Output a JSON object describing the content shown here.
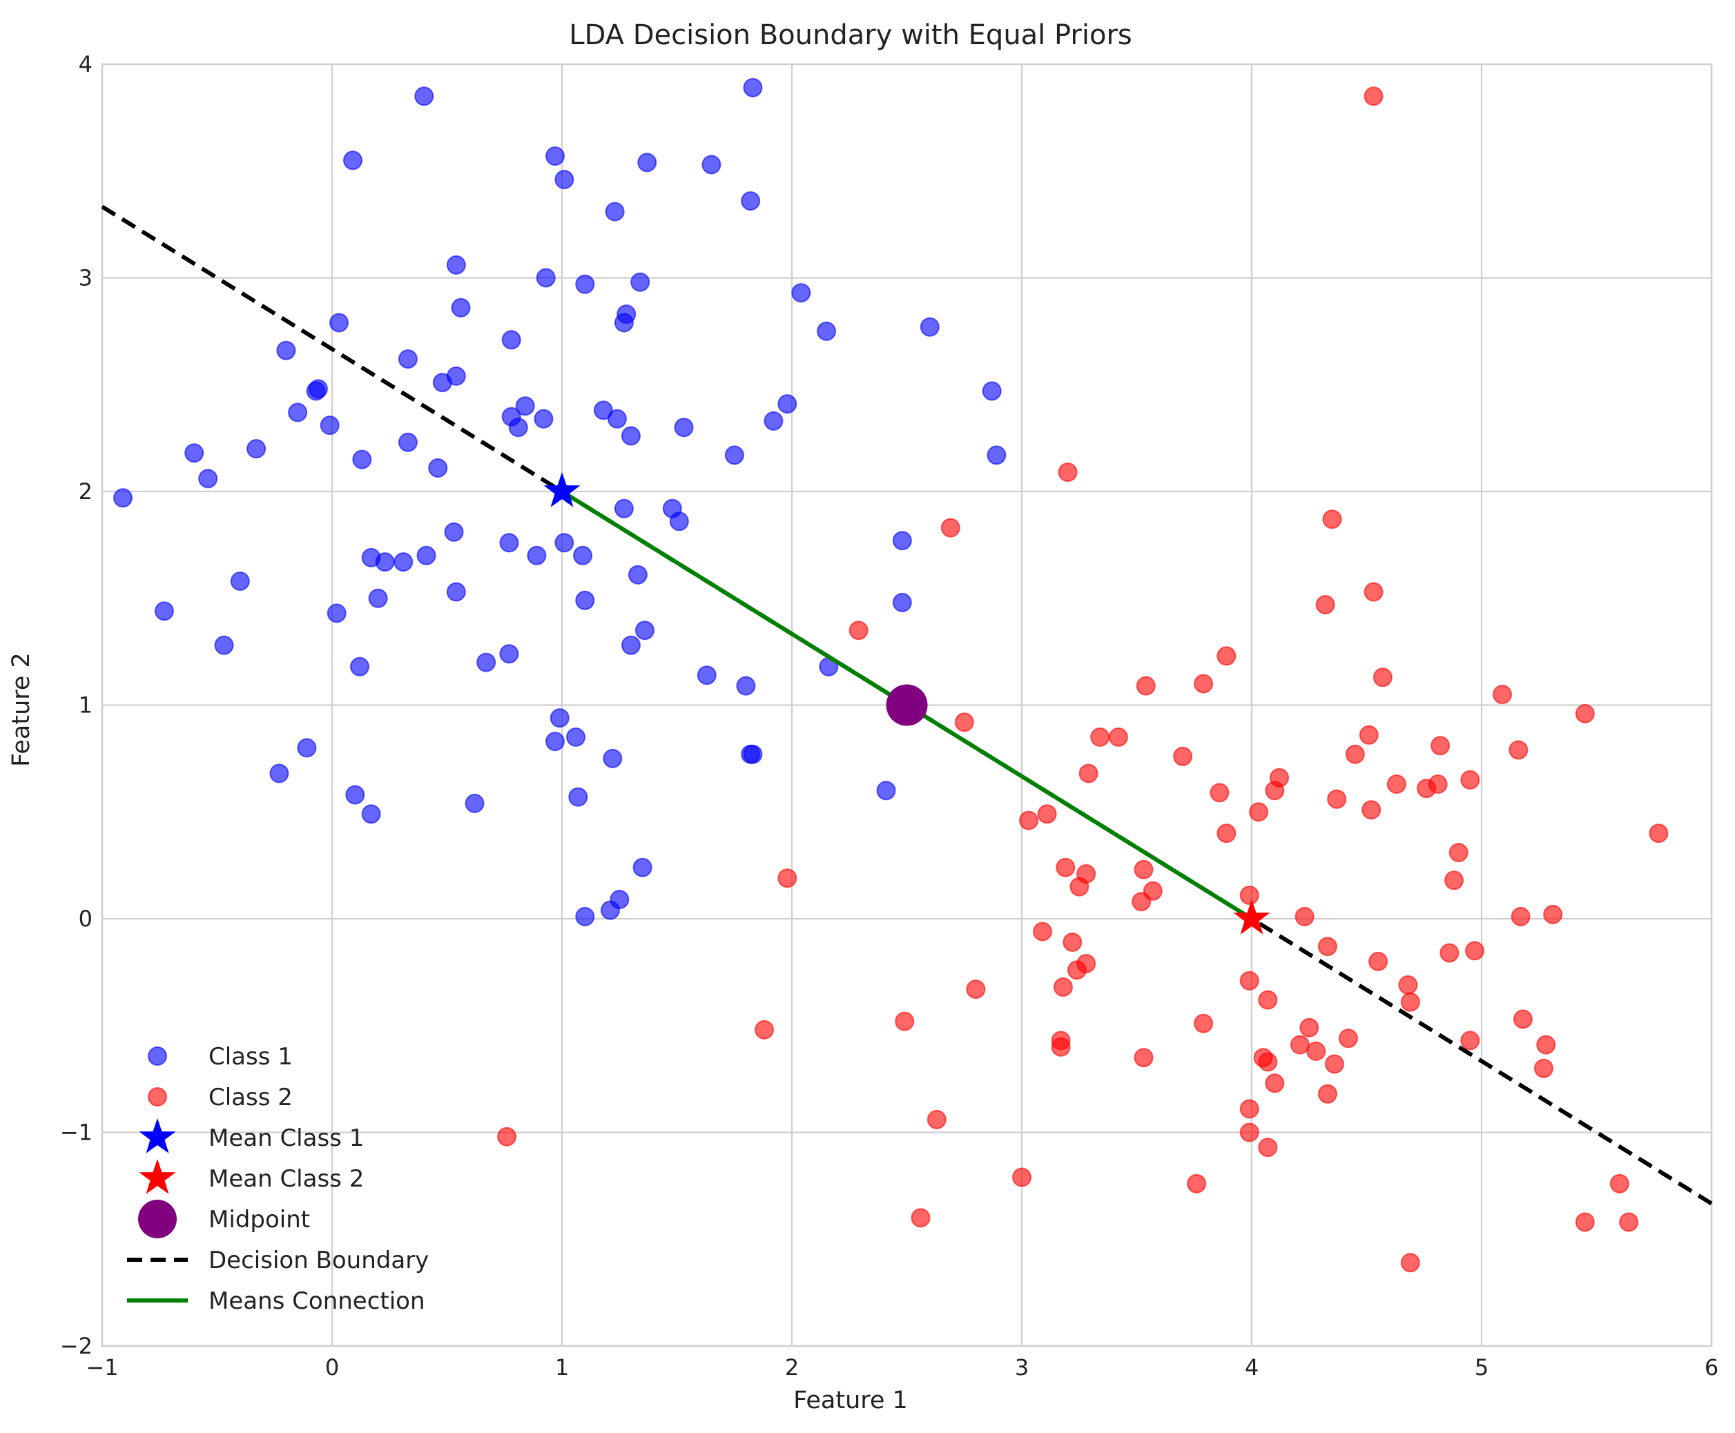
{
  "chart_data": {
    "type": "scatter",
    "title": "LDA Decision Boundary with Equal Priors",
    "xlabel": "Feature 1",
    "ylabel": "Feature 2",
    "xlim": [
      -1,
      6
    ],
    "ylim": [
      -2,
      4
    ],
    "xticks": [
      -1,
      0,
      1,
      2,
      3,
      4,
      5,
      6
    ],
    "yticks": [
      -2,
      -1,
      0,
      1,
      2,
      3,
      4
    ],
    "grid": true,
    "legend_position": "lower-left",
    "colors": {
      "class1": "#0000ff",
      "class2": "#ff0000",
      "mean1": "#0000ff",
      "mean2": "#ff0000",
      "midpoint": "#800080",
      "boundary": "#000000",
      "means_connection": "#008000"
    },
    "legend": [
      {
        "key": "class1",
        "label": "Class 1",
        "marker": "circle"
      },
      {
        "key": "class2",
        "label": "Class 2",
        "marker": "circle"
      },
      {
        "key": "mean1",
        "label": "Mean Class 1",
        "marker": "star"
      },
      {
        "key": "mean2",
        "label": "Mean Class 2",
        "marker": "star"
      },
      {
        "key": "midpoint",
        "label": "Midpoint",
        "marker": "big-circle"
      },
      {
        "key": "boundary",
        "label": "Decision Boundary",
        "marker": "dashed-line"
      },
      {
        "key": "means_connection",
        "label": "Means Connection",
        "marker": "solid-line"
      }
    ],
    "series": [
      {
        "name": "Class 1",
        "key": "class1",
        "points": [
          [
            0.4,
            3.85
          ],
          [
            1.83,
            3.89
          ],
          [
            0.09,
            3.55
          ],
          [
            0.97,
            3.57
          ],
          [
            1.01,
            3.46
          ],
          [
            1.37,
            3.54
          ],
          [
            1.65,
            3.53
          ],
          [
            1.82,
            3.36
          ],
          [
            1.23,
            3.31
          ],
          [
            0.54,
            3.06
          ],
          [
            0.93,
            3.0
          ],
          [
            1.1,
            2.97
          ],
          [
            1.34,
            2.98
          ],
          [
            2.04,
            2.93
          ],
          [
            0.56,
            2.86
          ],
          [
            1.28,
            2.83
          ],
          [
            1.27,
            2.79
          ],
          [
            0.03,
            2.79
          ],
          [
            2.15,
            2.75
          ],
          [
            2.6,
            2.77
          ],
          [
            0.78,
            2.71
          ],
          [
            -0.2,
            2.66
          ],
          [
            0.33,
            2.62
          ],
          [
            0.54,
            2.54
          ],
          [
            0.48,
            2.51
          ],
          [
            -0.06,
            2.48
          ],
          [
            -0.07,
            2.47
          ],
          [
            2.87,
            2.47
          ],
          [
            0.84,
            2.4
          ],
          [
            1.98,
            2.41
          ],
          [
            -0.15,
            2.37
          ],
          [
            0.78,
            2.35
          ],
          [
            0.92,
            2.34
          ],
          [
            1.18,
            2.38
          ],
          [
            1.24,
            2.34
          ],
          [
            1.92,
            2.33
          ],
          [
            -0.01,
            2.31
          ],
          [
            0.81,
            2.3
          ],
          [
            1.53,
            2.3
          ],
          [
            1.3,
            2.26
          ],
          [
            0.33,
            2.23
          ],
          [
            -0.33,
            2.2
          ],
          [
            -0.6,
            2.18
          ],
          [
            1.75,
            2.17
          ],
          [
            2.89,
            2.17
          ],
          [
            0.13,
            2.15
          ],
          [
            0.46,
            2.11
          ],
          [
            -0.54,
            2.06
          ],
          [
            -0.91,
            1.97
          ],
          [
            1.48,
            1.92
          ],
          [
            1.27,
            1.92
          ],
          [
            1.51,
            1.86
          ],
          [
            0.53,
            1.81
          ],
          [
            2.48,
            1.77
          ],
          [
            0.77,
            1.76
          ],
          [
            1.01,
            1.76
          ],
          [
            0.41,
            1.7
          ],
          [
            0.89,
            1.7
          ],
          [
            1.09,
            1.7
          ],
          [
            0.17,
            1.69
          ],
          [
            0.23,
            1.67
          ],
          [
            0.31,
            1.67
          ],
          [
            1.33,
            1.61
          ],
          [
            -0.4,
            1.58
          ],
          [
            0.54,
            1.53
          ],
          [
            0.2,
            1.5
          ],
          [
            1.1,
            1.49
          ],
          [
            2.48,
            1.48
          ],
          [
            -0.73,
            1.44
          ],
          [
            0.02,
            1.43
          ],
          [
            1.36,
            1.35
          ],
          [
            -0.47,
            1.28
          ],
          [
            1.3,
            1.28
          ],
          [
            0.77,
            1.24
          ],
          [
            0.67,
            1.2
          ],
          [
            0.12,
            1.18
          ],
          [
            2.16,
            1.18
          ],
          [
            1.63,
            1.14
          ],
          [
            1.8,
            1.09
          ],
          [
            0.99,
            0.94
          ],
          [
            1.06,
            0.85
          ],
          [
            0.97,
            0.83
          ],
          [
            -0.11,
            0.8
          ],
          [
            1.82,
            0.77
          ],
          [
            1.83,
            0.77
          ],
          [
            1.22,
            0.75
          ],
          [
            -0.23,
            0.68
          ],
          [
            2.41,
            0.6
          ],
          [
            0.1,
            0.58
          ],
          [
            1.07,
            0.57
          ],
          [
            0.62,
            0.54
          ],
          [
            0.17,
            0.49
          ],
          [
            1.35,
            0.24
          ],
          [
            1.25,
            0.09
          ],
          [
            1.21,
            0.04
          ],
          [
            1.1,
            0.01
          ]
        ]
      },
      {
        "name": "Class 2",
        "key": "class2",
        "points": [
          [
            4.53,
            3.85
          ],
          [
            3.2,
            2.09
          ],
          [
            4.35,
            1.87
          ],
          [
            2.69,
            1.83
          ],
          [
            4.53,
            1.53
          ],
          [
            4.32,
            1.47
          ],
          [
            2.29,
            1.35
          ],
          [
            3.89,
            1.23
          ],
          [
            4.57,
            1.13
          ],
          [
            3.54,
            1.09
          ],
          [
            3.79,
            1.1
          ],
          [
            5.09,
            1.05
          ],
          [
            5.45,
            0.96
          ],
          [
            2.75,
            0.92
          ],
          [
            3.34,
            0.85
          ],
          [
            3.42,
            0.85
          ],
          [
            4.51,
            0.86
          ],
          [
            4.82,
            0.81
          ],
          [
            5.16,
            0.79
          ],
          [
            4.45,
            0.77
          ],
          [
            3.7,
            0.76
          ],
          [
            3.29,
            0.68
          ],
          [
            4.12,
            0.66
          ],
          [
            4.95,
            0.65
          ],
          [
            4.63,
            0.63
          ],
          [
            4.81,
            0.63
          ],
          [
            4.76,
            0.61
          ],
          [
            4.1,
            0.6
          ],
          [
            3.86,
            0.59
          ],
          [
            4.37,
            0.56
          ],
          [
            4.52,
            0.51
          ],
          [
            4.03,
            0.5
          ],
          [
            3.11,
            0.49
          ],
          [
            3.03,
            0.46
          ],
          [
            3.89,
            0.4
          ],
          [
            5.77,
            0.4
          ],
          [
            4.9,
            0.31
          ],
          [
            3.19,
            0.24
          ],
          [
            3.53,
            0.23
          ],
          [
            3.28,
            0.21
          ],
          [
            4.88,
            0.18
          ],
          [
            1.98,
            0.19
          ],
          [
            3.25,
            0.15
          ],
          [
            3.57,
            0.13
          ],
          [
            3.52,
            0.08
          ],
          [
            3.99,
            0.11
          ],
          [
            4.23,
            0.01
          ],
          [
            5.17,
            0.01
          ],
          [
            5.31,
            0.02
          ],
          [
            3.09,
            -0.06
          ],
          [
            3.22,
            -0.11
          ],
          [
            4.33,
            -0.13
          ],
          [
            4.97,
            -0.15
          ],
          [
            4.86,
            -0.16
          ],
          [
            4.55,
            -0.2
          ],
          [
            3.28,
            -0.21
          ],
          [
            3.24,
            -0.24
          ],
          [
            3.99,
            -0.29
          ],
          [
            4.68,
            -0.31
          ],
          [
            3.18,
            -0.32
          ],
          [
            2.8,
            -0.33
          ],
          [
            4.07,
            -0.38
          ],
          [
            4.69,
            -0.39
          ],
          [
            5.18,
            -0.47
          ],
          [
            2.49,
            -0.48
          ],
          [
            3.79,
            -0.49
          ],
          [
            4.25,
            -0.51
          ],
          [
            1.88,
            -0.52
          ],
          [
            3.17,
            -0.57
          ],
          [
            4.42,
            -0.56
          ],
          [
            3.17,
            -0.6
          ],
          [
            4.21,
            -0.59
          ],
          [
            5.28,
            -0.59
          ],
          [
            4.95,
            -0.57
          ],
          [
            4.28,
            -0.62
          ],
          [
            4.05,
            -0.65
          ],
          [
            3.53,
            -0.65
          ],
          [
            4.07,
            -0.67
          ],
          [
            4.36,
            -0.68
          ],
          [
            5.27,
            -0.7
          ],
          [
            4.1,
            -0.77
          ],
          [
            4.33,
            -0.82
          ],
          [
            3.99,
            -0.89
          ],
          [
            2.63,
            -0.94
          ],
          [
            3.99,
            -1.0
          ],
          [
            0.76,
            -1.02
          ],
          [
            4.07,
            -1.07
          ],
          [
            3.0,
            -1.21
          ],
          [
            3.76,
            -1.24
          ],
          [
            5.6,
            -1.24
          ],
          [
            2.56,
            -1.4
          ],
          [
            5.45,
            -1.42
          ],
          [
            5.64,
            -1.42
          ],
          [
            4.69,
            -1.61
          ]
        ]
      }
    ],
    "means": {
      "class1": [
        1,
        2
      ],
      "class2": [
        4,
        0
      ],
      "midpoint": [
        2.5,
        1
      ]
    },
    "decision_boundary": {
      "x": [
        -1,
        6
      ],
      "y": [
        3.333,
        -1.333
      ]
    },
    "means_connection": {
      "x": [
        1,
        4
      ],
      "y": [
        2,
        0
      ]
    }
  }
}
